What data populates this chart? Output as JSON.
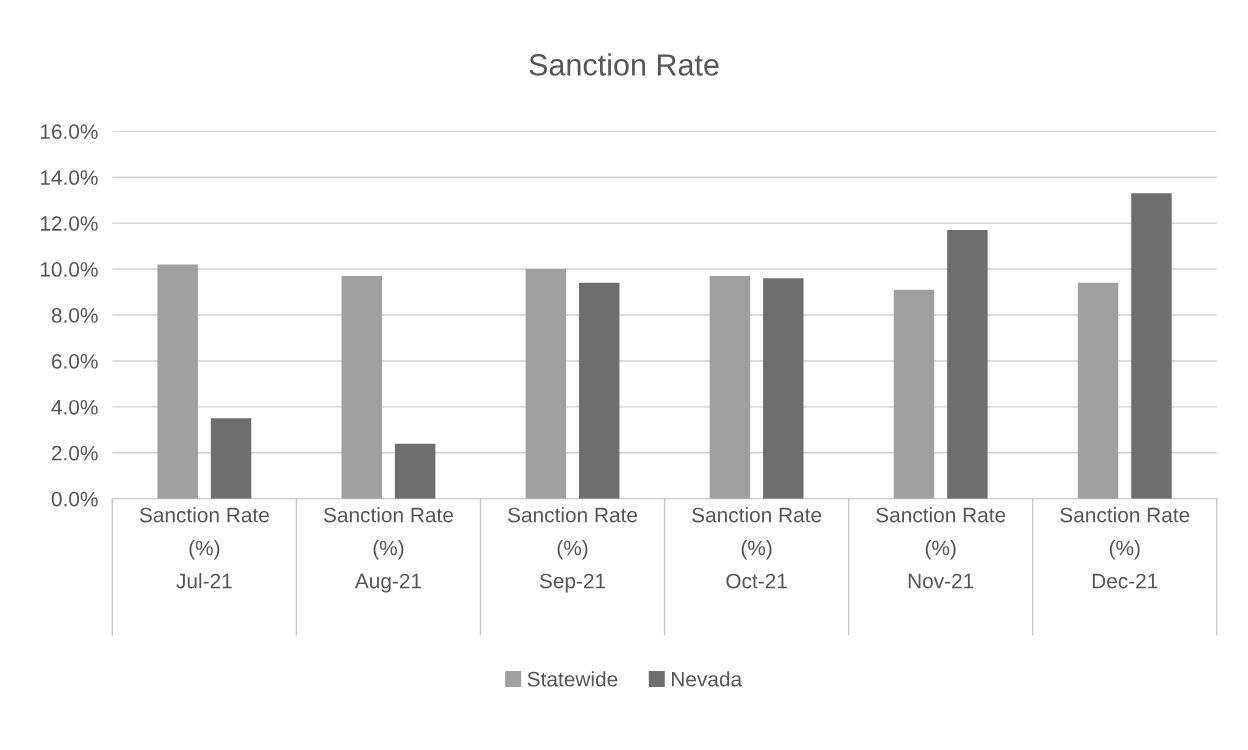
{
  "chart_data": {
    "type": "bar",
    "title": "Sanction Rate",
    "categories": [
      "Sanction Rate\n(%)\nJul-21",
      "Sanction Rate\n(%)\nAug-21",
      "Sanction Rate\n(%)\nSep-21",
      "Sanction Rate\n(%)\nOct-21",
      "Sanction Rate\n(%)\nNov-21",
      "Sanction Rate\n(%)\nDec-21"
    ],
    "series": [
      {
        "name": "Statewide",
        "color": "#a0a0a0",
        "values": [
          10.2,
          9.7,
          10.0,
          9.7,
          9.1,
          9.4
        ]
      },
      {
        "name": "Nevada",
        "color": "#6e6e6e",
        "values": [
          3.5,
          2.4,
          9.4,
          9.6,
          11.7,
          13.3
        ]
      }
    ],
    "ylim": [
      0,
      16
    ],
    "yticks": [
      {
        "value": 0,
        "label": "0.0%"
      },
      {
        "value": 2,
        "label": "2.0%"
      },
      {
        "value": 4,
        "label": "4.0%"
      },
      {
        "value": 6,
        "label": "6.0%"
      },
      {
        "value": 8,
        "label": "8.0%"
      },
      {
        "value": 10,
        "label": "10.0%"
      },
      {
        "value": 12,
        "label": "12.0%"
      },
      {
        "value": 14,
        "label": "14.0%"
      },
      {
        "value": 16,
        "label": "16.0%"
      }
    ],
    "grid": "y",
    "legend": "bottom"
  }
}
